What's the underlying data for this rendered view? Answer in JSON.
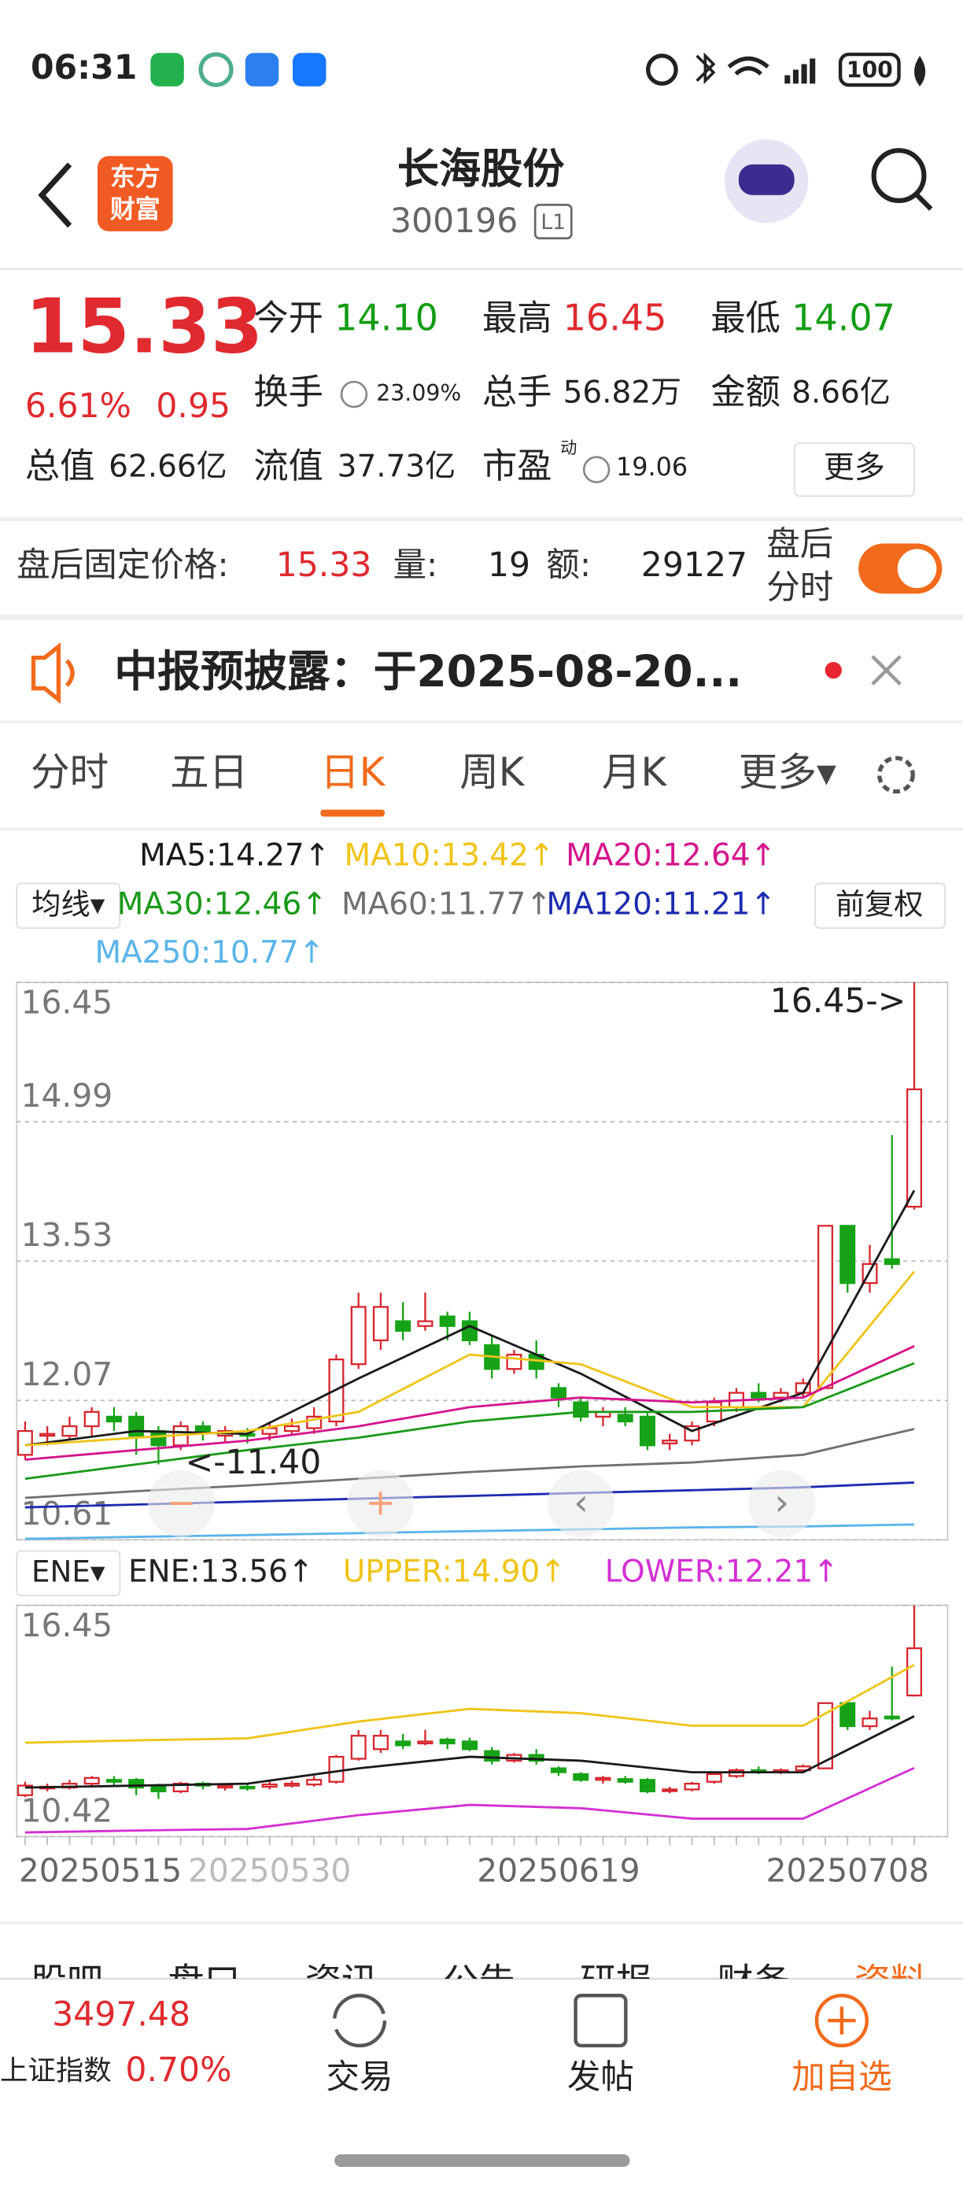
{
  "status": {
    "time": "06:31",
    "battery": "100"
  },
  "header": {
    "logo": [
      "东方",
      "财富"
    ],
    "name": "长海股份",
    "code": "300196",
    "badge": "L1"
  },
  "quote": {
    "price": "15.33",
    "change_pct": "6.61%",
    "change": "0.95",
    "fields": [
      {
        "label": "今开",
        "value": "14.10",
        "tone": "down"
      },
      {
        "label": "最高",
        "value": "16.45",
        "tone": "up"
      },
      {
        "label": "最低",
        "value": "14.07",
        "tone": "down"
      },
      {
        "label": "换手",
        "value": "23.09%",
        "tone": "plain"
      },
      {
        "label": "总手",
        "value": "56.82万",
        "tone": "plain"
      },
      {
        "label": "金额",
        "value": "8.66亿",
        "tone": "plain"
      },
      {
        "label": "总值",
        "value": "62.66亿",
        "tone": "plain"
      },
      {
        "label": "流值",
        "value": "37.73亿",
        "tone": "plain"
      },
      {
        "label": "市盈",
        "sup": "动",
        "value": "19.06",
        "tone": "plain"
      }
    ],
    "more": "更多"
  },
  "after_hours": {
    "label": "盘后固定价格:",
    "price": "15.33",
    "vol_label": "量:",
    "vol": "19",
    "amt_label": "额:",
    "amt": "29127",
    "toggle": [
      "盘后",
      "分时"
    ]
  },
  "notice": {
    "text": "中报预披露：于2025-08-20..."
  },
  "tabs": {
    "items": [
      "分时",
      "五日",
      "日K",
      "周K",
      "月K",
      "更多▾"
    ],
    "active": 2
  },
  "kline": {
    "ma_button": "均线▾",
    "adjust": "前复权",
    "ylim": [
      10.61,
      16.45
    ],
    "yticks": [
      10.61,
      12.07,
      13.53,
      14.99,
      16.45
    ],
    "annotations": [
      "16.45->",
      "<-11.40"
    ],
    "candles": [
      [
        11.5,
        11.75,
        11.85,
        11.45
      ],
      [
        11.7,
        11.72,
        11.8,
        11.6
      ],
      [
        11.7,
        11.8,
        11.9,
        11.65
      ],
      [
        11.8,
        11.95,
        12.0,
        11.7
      ],
      [
        11.9,
        11.85,
        12.0,
        11.75
      ],
      [
        11.9,
        11.7,
        11.95,
        11.5
      ],
      [
        11.75,
        11.6,
        11.8,
        11.4
      ],
      [
        11.6,
        11.8,
        11.85,
        11.55
      ],
      [
        11.8,
        11.75,
        11.85,
        11.65
      ],
      [
        11.7,
        11.75,
        11.8,
        11.62
      ],
      [
        11.72,
        11.7,
        11.78,
        11.62
      ],
      [
        11.72,
        11.78,
        11.85,
        11.65
      ],
      [
        11.75,
        11.8,
        11.88,
        11.7
      ],
      [
        11.78,
        11.9,
        12.0,
        11.72
      ],
      [
        11.85,
        12.5,
        12.55,
        11.8
      ],
      [
        12.45,
        13.05,
        13.2,
        12.4
      ],
      [
        12.7,
        13.05,
        13.2,
        12.6
      ],
      [
        12.9,
        12.8,
        13.1,
        12.7
      ],
      [
        12.85,
        12.9,
        13.2,
        12.8
      ],
      [
        12.95,
        12.85,
        13.0,
        12.7
      ],
      [
        12.9,
        12.7,
        13.0,
        12.65
      ],
      [
        12.65,
        12.4,
        12.75,
        12.3
      ],
      [
        12.4,
        12.55,
        12.6,
        12.35
      ],
      [
        12.55,
        12.4,
        12.7,
        12.3
      ],
      [
        12.2,
        12.1,
        12.25,
        12.0
      ],
      [
        12.05,
        11.9,
        12.1,
        11.85
      ],
      [
        11.9,
        11.95,
        12.0,
        11.8
      ],
      [
        11.92,
        11.85,
        12.0,
        11.8
      ],
      [
        11.9,
        11.6,
        11.95,
        11.55
      ],
      [
        11.62,
        11.65,
        11.72,
        11.55
      ],
      [
        11.65,
        11.8,
        11.85,
        11.6
      ],
      [
        11.85,
        12.05,
        12.1,
        11.8
      ],
      [
        12.0,
        12.15,
        12.2,
        11.95
      ],
      [
        12.15,
        12.1,
        12.25,
        12.05
      ],
      [
        12.1,
        12.15,
        12.2,
        12.05
      ],
      [
        12.15,
        12.25,
        12.3,
        12.1
      ],
      [
        12.2,
        13.9,
        13.9,
        12.2
      ],
      [
        13.9,
        13.3,
        13.9,
        13.2
      ],
      [
        13.3,
        13.5,
        13.7,
        13.2
      ],
      [
        13.55,
        13.5,
        14.85,
        13.45
      ],
      [
        14.1,
        15.33,
        16.45,
        14.07
      ]
    ],
    "categories": [
      "20250515",
      null,
      null,
      null,
      null,
      null,
      null,
      null,
      null,
      null,
      null,
      "20250530",
      null,
      null,
      null,
      null,
      null,
      null,
      null,
      null,
      null,
      null,
      null,
      null,
      "20250619",
      null,
      null,
      null,
      null,
      null,
      null,
      null,
      null,
      null,
      null,
      null,
      null,
      "20250708",
      null,
      null,
      null
    ],
    "up_color": "#d8262f",
    "down_color": "#17a317",
    "ma": [
      {
        "name": "MA5",
        "label": "MA5:14.27↑",
        "color": "#1a1a1a",
        "x": [
          0,
          5,
          10,
          15,
          20,
          25,
          30,
          35,
          40
        ],
        "values": [
          11.6,
          11.75,
          11.72,
          12.3,
          12.85,
          12.35,
          11.75,
          12.15,
          14.27
        ]
      },
      {
        "name": "MA10",
        "label": "MA10:13.42↑",
        "color": "#f0c419",
        "x": [
          0,
          5,
          10,
          15,
          20,
          25,
          30,
          35,
          40
        ],
        "values": [
          11.6,
          11.68,
          11.75,
          11.95,
          12.55,
          12.45,
          12.0,
          12.0,
          13.42
        ]
      },
      {
        "name": "MA20",
        "label": "MA20:12.64↑",
        "color": "#d4148c",
        "x": [
          0,
          5,
          10,
          15,
          20,
          25,
          30,
          35,
          40
        ],
        "values": [
          11.45,
          11.55,
          11.65,
          11.8,
          12.0,
          12.1,
          12.05,
          12.1,
          12.64
        ]
      },
      {
        "name": "MA30",
        "label": "MA30:12.46↑",
        "color": "#1a9a1a",
        "x": [
          0,
          5,
          10,
          15,
          20,
          25,
          30,
          35,
          40
        ],
        "values": [
          11.25,
          11.4,
          11.55,
          11.68,
          11.85,
          11.95,
          11.95,
          12.0,
          12.46
        ]
      },
      {
        "name": "MA60",
        "label": "MA60:11.77↑",
        "color": "#707070",
        "x": [
          0,
          5,
          10,
          15,
          20,
          25,
          30,
          35,
          40
        ],
        "values": [
          11.05,
          11.12,
          11.18,
          11.25,
          11.32,
          11.38,
          11.42,
          11.5,
          11.77
        ]
      },
      {
        "name": "MA120",
        "label": "MA120:11.21↑",
        "color": "#1c2bb0",
        "x": [
          0,
          5,
          10,
          15,
          20,
          25,
          30,
          35,
          40
        ],
        "values": [
          10.95,
          10.98,
          11.01,
          11.04,
          11.07,
          11.1,
          11.13,
          11.16,
          11.21
        ]
      },
      {
        "name": "MA250",
        "label": "MA250:10.77↑",
        "color": "#5ab4ea",
        "x": [
          0,
          5,
          10,
          15,
          20,
          25,
          30,
          35,
          40
        ],
        "values": [
          10.62,
          10.64,
          10.66,
          10.68,
          10.7,
          10.72,
          10.74,
          10.75,
          10.77
        ]
      }
    ]
  },
  "ene": {
    "button": "ENE▾",
    "ylim": [
      10.42,
      16.45
    ],
    "yticks": [
      10.42,
      16.45
    ],
    "series": [
      {
        "name": "ENE",
        "label": "ENE:13.56↑",
        "color": "#1a1a1a",
        "x": [
          0,
          5,
          10,
          15,
          20,
          25,
          30,
          35,
          40
        ],
        "values": [
          11.7,
          11.75,
          11.8,
          12.2,
          12.5,
          12.4,
          12.1,
          12.1,
          13.56
        ]
      },
      {
        "name": "UPPER",
        "label": "UPPER:14.90↑",
        "color": "#f0c419",
        "x": [
          0,
          5,
          10,
          15,
          20,
          25,
          30,
          35,
          40
        ],
        "values": [
          12.87,
          12.93,
          12.98,
          13.42,
          13.75,
          13.64,
          13.31,
          13.31,
          14.9
        ]
      },
      {
        "name": "LOWER",
        "label": "LOWER:12.21↑",
        "color": "#d42fd4",
        "x": [
          0,
          5,
          10,
          15,
          20,
          25,
          30,
          35,
          40
        ],
        "values": [
          10.53,
          10.58,
          10.62,
          10.98,
          11.25,
          11.16,
          10.89,
          10.89,
          12.21
        ]
      }
    ]
  },
  "sub_tabs": [
    "股吧",
    "盘口",
    "资讯",
    "公告",
    "研报",
    "财务",
    "资料"
  ],
  "bottom_nav": {
    "index_value": "3497.48",
    "index_name": "上证指数",
    "index_change": "0.70%",
    "items": [
      "交易",
      "发帖",
      "加自选"
    ]
  }
}
